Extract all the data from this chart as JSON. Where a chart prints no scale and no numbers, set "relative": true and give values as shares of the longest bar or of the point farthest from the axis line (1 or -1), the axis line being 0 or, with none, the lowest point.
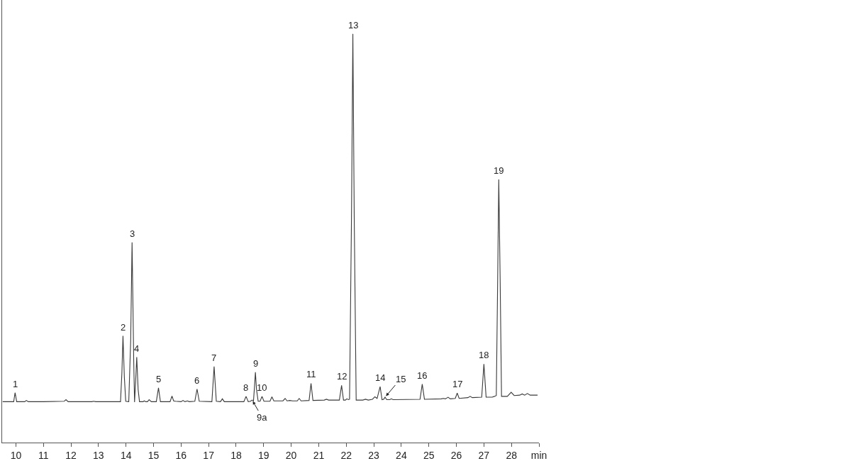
{
  "chart_data": {
    "type": "line",
    "relative": true,
    "tick_labels": "x",
    "x": [
      9.52,
      9.92,
      9.97,
      10.03,
      10.32,
      10.38,
      10.45,
      11.0,
      11.75,
      11.82,
      11.9,
      12.76,
      12.82,
      12.9,
      13.8,
      13.85,
      13.89,
      13.94,
      13.99,
      14.1,
      14.17,
      14.22,
      14.28,
      14.31,
      14.35,
      14.39,
      14.44,
      14.49,
      14.62,
      14.66,
      14.72,
      14.78,
      14.84,
      14.92,
      15.1,
      15.18,
      15.25,
      15.6,
      15.67,
      15.73,
      15.8,
      16.0,
      16.07,
      16.14,
      16.23,
      16.3,
      16.5,
      16.58,
      16.66,
      17.12,
      17.2,
      17.28,
      17.43,
      17.5,
      17.57,
      18.28,
      18.36,
      18.44,
      18.52,
      18.58,
      18.63,
      18.66,
      18.7,
      18.74,
      18.8,
      18.87,
      18.94,
      19.01,
      19.23,
      19.3,
      19.37,
      19.55,
      19.7,
      19.78,
      19.85,
      19.95,
      20.05,
      20.22,
      20.29,
      20.36,
      20.65,
      20.72,
      20.79,
      21.2,
      21.28,
      21.36,
      21.75,
      21.83,
      21.9,
      21.97,
      22.02,
      22.08,
      22.12,
      22.19,
      22.24,
      22.29,
      22.36,
      22.6,
      22.7,
      22.8,
      22.95,
      23.04,
      23.12,
      23.23,
      23.3,
      23.36,
      23.41,
      23.47,
      23.58,
      23.64,
      23.7,
      24.68,
      24.76,
      24.84,
      25.45,
      25.53,
      25.6,
      25.7,
      25.78,
      25.96,
      26.03,
      26.1,
      26.42,
      26.5,
      26.58,
      26.92,
      27.0,
      27.08,
      27.3,
      27.38,
      27.45,
      27.5,
      27.54,
      27.59,
      27.64,
      27.85,
      27.99,
      28.1,
      28.3,
      28.39,
      28.48,
      28.58,
      28.68,
      28.95
    ],
    "series": [
      {
        "color": "#3a3a3a",
        "values": [
          0.1,
          0.1,
          0.122,
          0.1,
          0.1,
          0.103,
          0.1,
          0.1,
          0.101,
          0.105,
          0.1,
          0.1,
          0.101,
          0.1,
          0.1,
          0.17,
          0.261,
          0.16,
          0.101,
          0.1,
          0.25,
          0.49,
          0.2,
          0.099,
          0.15,
          0.209,
          0.13,
          0.1,
          0.1,
          0.102,
          0.1,
          0.1,
          0.105,
          0.1,
          0.1,
          0.134,
          0.1,
          0.1,
          0.114,
          0.102,
          0.101,
          0.1,
          0.103,
          0.1,
          0.102,
          0.1,
          0.101,
          0.131,
          0.101,
          0.1,
          0.186,
          0.101,
          0.1,
          0.107,
          0.1,
          0.1,
          0.113,
          0.1,
          0.101,
          0.104,
          0.102,
          0.13,
          0.172,
          0.13,
          0.101,
          0.101,
          0.113,
          0.101,
          0.101,
          0.112,
          0.102,
          0.102,
          0.102,
          0.108,
          0.102,
          0.103,
          0.102,
          0.102,
          0.108,
          0.102,
          0.103,
          0.145,
          0.103,
          0.104,
          0.106,
          0.104,
          0.104,
          0.14,
          0.104,
          0.104,
          0.107,
          0.105,
          0.106,
          0.55,
          1.0,
          0.55,
          0.104,
          0.104,
          0.106,
          0.104,
          0.106,
          0.112,
          0.108,
          0.137,
          0.105,
          0.106,
          0.111,
          0.105,
          0.105,
          0.107,
          0.105,
          0.106,
          0.143,
          0.106,
          0.107,
          0.108,
          0.107,
          0.111,
          0.107,
          0.108,
          0.121,
          0.108,
          0.11,
          0.113,
          0.11,
          0.111,
          0.192,
          0.111,
          0.111,
          0.113,
          0.115,
          0.4,
          0.644,
          0.4,
          0.113,
          0.113,
          0.123,
          0.115,
          0.116,
          0.119,
          0.116,
          0.12,
          0.116,
          0.116
        ]
      }
    ],
    "xlim": [
      9.5,
      29
    ],
    "xticks": [
      10,
      11,
      12,
      13,
      14,
      15,
      16,
      17,
      18,
      19,
      20,
      21,
      22,
      23,
      24,
      25,
      26,
      27,
      28,
      {
        "value": 29,
        "label": "min"
      }
    ],
    "annotations": [
      {
        "text": "1",
        "x": 9.97,
        "y": 0.122
      },
      {
        "text": "2",
        "x": 13.89,
        "y": 0.261
      },
      {
        "text": "3",
        "x": 14.22,
        "y": 0.49
      },
      {
        "text": "4",
        "x": 14.39,
        "y": 0.209
      },
      {
        "text": "5",
        "x": 15.18,
        "y": 0.134
      },
      {
        "text": "6",
        "x": 16.58,
        "y": 0.131
      },
      {
        "text": "7",
        "x": 17.2,
        "y": 0.186
      },
      {
        "text": "8",
        "x": 18.36,
        "y": 0.113
      },
      {
        "text": "9a",
        "x": 18.58,
        "y": 0.104
      },
      {
        "text": "9",
        "x": 18.7,
        "y": 0.172
      },
      {
        "text": "10",
        "x": 18.94,
        "y": 0.113
      },
      {
        "text": "11",
        "x": 20.72,
        "y": 0.145
      },
      {
        "text": "12",
        "x": 21.83,
        "y": 0.14
      },
      {
        "text": "13",
        "x": 22.24,
        "y": 1.0
      },
      {
        "text": "14",
        "x": 23.23,
        "y": 0.137
      },
      {
        "text": "15",
        "x": 23.41,
        "y": 0.111
      },
      {
        "text": "16",
        "x": 24.76,
        "y": 0.143
      },
      {
        "text": "17",
        "x": 26.03,
        "y": 0.121
      },
      {
        "text": "18",
        "x": 27.0,
        "y": 0.192
      },
      {
        "text": "19",
        "x": 27.54,
        "y": 0.644
      }
    ]
  }
}
